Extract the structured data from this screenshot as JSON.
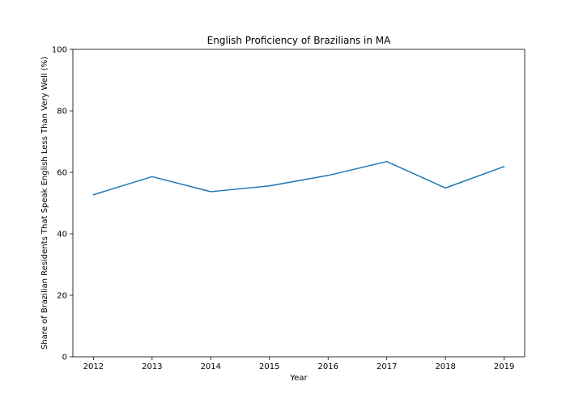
{
  "chart_data": {
    "type": "line",
    "title": "English Proficiency of Brazilians in MA",
    "xlabel": "Year",
    "ylabel": "Share of Brazilian Residents That Speak English Less Than Very Well (%)",
    "x": [
      2012,
      2013,
      2014,
      2015,
      2016,
      2017,
      2018,
      2019
    ],
    "series": [
      {
        "values": [
          52.7,
          58.6,
          53.7,
          55.6,
          59.0,
          63.5,
          54.9,
          61.9
        ]
      }
    ],
    "xticks": [
      "2012",
      "2013",
      "2014",
      "2015",
      "2016",
      "2017",
      "2018",
      "2019"
    ],
    "yticks": [
      "0",
      "20",
      "40",
      "60",
      "80",
      "100"
    ],
    "xlim": [
      2011.65,
      2019.35
    ],
    "ylim": [
      0,
      100
    ],
    "grid": false,
    "line_color": "#1f77b4"
  }
}
